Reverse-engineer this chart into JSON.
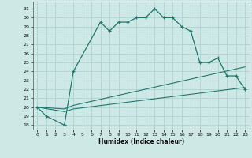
{
  "xlabel": "Humidex (Indice chaleur)",
  "bg_color": "#cde8e5",
  "line_color": "#1a7a6e",
  "grid_color": "#aacfcc",
  "xlim": [
    -0.5,
    23.5
  ],
  "ylim": [
    17.5,
    31.8
  ],
  "yticks": [
    18,
    19,
    20,
    21,
    22,
    23,
    24,
    25,
    26,
    27,
    28,
    29,
    30,
    31
  ],
  "xticks": [
    0,
    1,
    2,
    3,
    4,
    5,
    6,
    7,
    8,
    9,
    10,
    11,
    12,
    13,
    14,
    15,
    16,
    17,
    18,
    19,
    20,
    21,
    22,
    23
  ],
  "series1_x": [
    0,
    1,
    3,
    4,
    7,
    8,
    9,
    10,
    11,
    12,
    13,
    14,
    15,
    16,
    17,
    18,
    19,
    20,
    21,
    22,
    23
  ],
  "series1_y": [
    20,
    19,
    18,
    24,
    29.5,
    28.5,
    29.5,
    29.5,
    30,
    30,
    31,
    30,
    30,
    29,
    28.5,
    25,
    25,
    25.5,
    23.5,
    23.5,
    22
  ],
  "series2_x": [
    0,
    3,
    4,
    23
  ],
  "series2_y": [
    20,
    19.8,
    20.2,
    24.5
  ],
  "series3_x": [
    0,
    3,
    4,
    23
  ],
  "series3_y": [
    20,
    19.5,
    19.8,
    22.2
  ]
}
